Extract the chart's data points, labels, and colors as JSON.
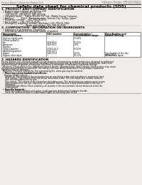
{
  "bg_color": "#f0ede8",
  "title": "Safety data sheet for chemical products (SDS)",
  "header_left": "Product Name: Lithium Ion Battery Cell",
  "header_right_line1": "Substance Number: SBR-049-00010",
  "header_right_line2": "Established / Revision: Dec.7,2010",
  "section1_title": "1. PRODUCT AND COMPANY IDENTIFICATION",
  "s1_lines": [
    "  • Product name: Lithium Ion Battery Cell",
    "  • Product code: Cylindrical-type cell",
    "      SXF-86500, SXF-86500, SXF-86500A",
    "  • Company name:    Sanyo Electric Co., Ltd., Mobile Energy Company",
    "  • Address:          200-1  Kamimatsumae, Sumoto-City, Hyogo, Japan",
    "  • Telephone number:   +81-799-26-4111",
    "  • Fax number:   +81-799-26-4129",
    "  • Emergency telephone number (Weekday) +81-799-26-3962",
    "                                  (Night and holiday) +81-799-26-4101"
  ],
  "section2_title": "2. COMPOSITION / INFORMATION ON INGREDIENTS",
  "s2_sub": "  • Substance or preparation: Preparation",
  "s2_sub2": "  • Information about the chemical nature of product:",
  "table_col_headers": [
    "Component/Chemical name",
    "CAS number",
    "Concentration /\nConcentration range",
    "Classification and\nhazard labeling"
  ],
  "table_rows": [
    [
      "Lithium cobalt oxide",
      "-",
      "30-60%",
      ""
    ],
    [
      "(LiMnxCoyNizO2)",
      "",
      "",
      ""
    ],
    [
      "Iron",
      "7439-89-6",
      "15-25%",
      ""
    ],
    [
      "Aluminum",
      "7429-90-5",
      "2-6%",
      ""
    ],
    [
      "Graphite",
      "",
      "",
      ""
    ],
    [
      "(Hard graphite)",
      "77763-44-2",
      "15-20%",
      ""
    ],
    [
      "(Artificial graphite)",
      "7782-42-5",
      "",
      ""
    ],
    [
      "Copper",
      "7440-50-8",
      "5-15%",
      "Sensitization of the skin\ngroup No.2"
    ],
    [
      "Organic electrolyte",
      "-",
      "10-20%",
      "Inflammable liquid"
    ]
  ],
  "section3_title": "3. HAZARDS IDENTIFICATION",
  "s3_lines": [
    "For the battery cell, chemical substances are stored in a hermetically sealed metal case, designed to withstand",
    "temperatures and pressure-potential conditions during normal use. As a result, during normal-use, there is no",
    "physical danger of ignition or explosion and there is no danger of hazardous substance leakage.",
    "  However, if exposed to a fire, added mechanical shocks, decompression, which electric-shock or they may cause",
    "the gas release and/or be operated. The battery cell case will be breached or fire-perhaps, hazardous",
    "materials may be released.",
    "  Moreover, if heated strongly by the surrounding fire, some gas may be emitted."
  ],
  "s3_hazards_title": "  • Most important hazard and effects:",
  "s3_human_title": "    Human health effects:",
  "s3_human_lines": [
    "      Inhalation: The release of the electrolyte has an anesthesia action and stimulates in respiratory tract.",
    "      Skin contact: The release of the electrolyte stimulates a skin. The electrolyte skin contact causes a",
    "      sore and stimulation on the skin.",
    "      Eye contact: The release of the electrolyte stimulates eyes. The electrolyte eye contact causes a sore",
    "      and stimulation on the eye. Especially, a substance that causes a strong inflammation of the eye is",
    "      contained.",
    "      Environmental effects: Since a battery cell remains in the environment, do not throw out it into the",
    "      environment."
  ],
  "s3_specific_title": "  • Specific hazards:",
  "s3_specific_lines": [
    "      If the electrolyte contacts with water, it will generate detrimental hydrogen fluoride.",
    "      Since the used electrolyte is inflammable liquid, do not bring close to fire."
  ]
}
